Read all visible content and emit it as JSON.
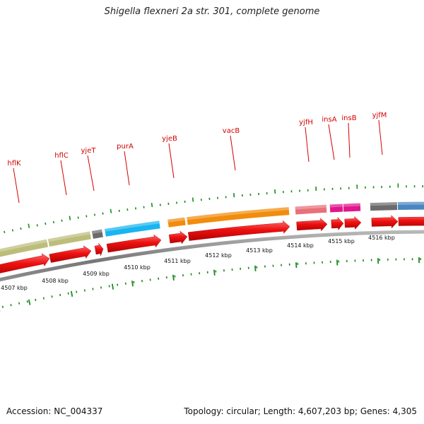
{
  "title": "Shigella flexneri 2a str. 301, complete genome",
  "footer": {
    "accession_label": "Accession: NC_004337",
    "info_label": "Topology: circular; Length: 4,607,203 bp; Genes: 4,305"
  },
  "genes": [
    {
      "name": "hflK",
      "color": "#bdbd7a"
    },
    {
      "name": "hflC",
      "color": "#bdbd7a"
    },
    {
      "name": "yjeT",
      "color": "#6b6b6b"
    },
    {
      "name": "purA",
      "color": "#19b5f0"
    },
    {
      "name": "yjeB",
      "color": "#f28c0d"
    },
    {
      "name": "vacB",
      "color": "#f28c0d"
    },
    {
      "name": "yjfH",
      "color": "#e8707a"
    },
    {
      "name": "insA",
      "color": "#e0168c"
    },
    {
      "name": "insB",
      "color": "#e0168c"
    },
    {
      "name": "yjfM",
      "color": "#6b6b6b"
    },
    {
      "name": "",
      "color": "#4a86c2"
    }
  ],
  "kbp_labels": [
    "4507 kbp",
    "4508 kbp",
    "4509 kbp",
    "4510 kbp",
    "4511 kbp",
    "4512 kbp",
    "4513 kbp",
    "4514 kbp",
    "4515 kbp",
    "4516 kbp"
  ],
  "colors": {
    "cds_arrow": "#ee1111",
    "backbone": "#888888",
    "tick": "#1a8a1a",
    "label": "#d40000"
  }
}
